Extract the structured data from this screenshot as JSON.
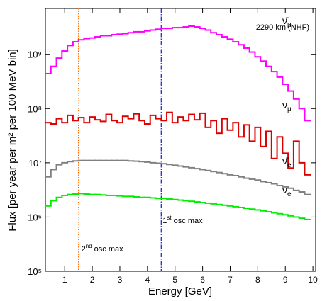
{
  "chart_data": {
    "type": "step",
    "xlabel": "Energy [GeV]",
    "ylabel": "Flux [per year per m² per 100 MeV bin]",
    "annotation": "2290 km (NHF)",
    "xlim": [
      0.3,
      10.1
    ],
    "xticks": [
      1,
      2,
      3,
      4,
      5,
      6,
      7,
      8,
      9,
      10
    ],
    "ylim": [
      100000,
      7000000000
    ],
    "log_y": true,
    "yticks": [
      {
        "value": 100000,
        "label": "10⁵"
      },
      {
        "value": 1000000,
        "label": "10⁶"
      },
      {
        "value": 10000000,
        "label": "10⁷"
      },
      {
        "value": 100000000,
        "label": "10⁸"
      },
      {
        "value": 1000000000,
        "label": "10⁹"
      }
    ],
    "grid": false,
    "vlines": [
      {
        "x": 1.5,
        "color": "#ff6a00",
        "style": "dotted",
        "text": "2",
        "sup": "nd",
        "tail": "osc max"
      },
      {
        "x": 4.5,
        "color": "#1a1acc",
        "style": "dashdot",
        "text": "1",
        "sup": "st",
        "tail": "osc max"
      }
    ],
    "x": [
      0.4,
      0.6,
      0.8,
      1.0,
      1.2,
      1.4,
      1.6,
      1.8,
      2.0,
      2.2,
      2.4,
      2.6,
      2.8,
      3.0,
      3.2,
      3.4,
      3.6,
      3.8,
      4.0,
      4.2,
      4.4,
      4.6,
      4.8,
      5.0,
      5.2,
      5.4,
      5.6,
      5.8,
      6.0,
      6.2,
      6.4,
      6.6,
      6.8,
      7.0,
      7.2,
      7.4,
      7.6,
      7.8,
      8.0,
      8.2,
      8.4,
      8.6,
      8.8,
      9.0,
      9.2,
      9.4,
      9.6,
      9.8
    ],
    "series": [
      {
        "name": "ν̄",
        "sub": "μ",
        "color": "#ff00ff",
        "values": [
          440000000.0,
          600000000.0,
          850000000.0,
          1150000000.0,
          1450000000.0,
          1700000000.0,
          1850000000.0,
          1950000000.0,
          2000000000.0,
          2100000000.0,
          2200000000.0,
          2200000000.0,
          2300000000.0,
          2350000000.0,
          2400000000.0,
          2500000000.0,
          2600000000.0,
          2600000000.0,
          2700000000.0,
          2800000000.0,
          2900000000.0,
          3000000000.0,
          3000000000.0,
          3100000000.0,
          3100000000.0,
          3200000000.0,
          3300000000.0,
          3200000000.0,
          3000000000.0,
          2800000000.0,
          2500000000.0,
          2300000000.0,
          2100000000.0,
          1900000000.0,
          1700000000.0,
          1500000000.0,
          1300000000.0,
          1100000000.0,
          900000000.0,
          750000000.0,
          600000000.0,
          480000000.0,
          380000000.0,
          280000000.0,
          210000000.0,
          150000000.0,
          100000000.0,
          60000000.0
        ]
      },
      {
        "name": "ν",
        "sub": "μ",
        "color": "#dd0000",
        "values": [
          55000000.0,
          52000000.0,
          65000000.0,
          55000000.0,
          75000000.0,
          60000000.0,
          68000000.0,
          55000000.0,
          70000000.0,
          62000000.0,
          58000000.0,
          78000000.0,
          60000000.0,
          55000000.0,
          72000000.0,
          65000000.0,
          80000000.0,
          60000000.0,
          52000000.0,
          75000000.0,
          65000000.0,
          60000000.0,
          85000000.0,
          55000000.0,
          70000000.0,
          60000000.0,
          78000000.0,
          62000000.0,
          82000000.0,
          45000000.0,
          60000000.0,
          35000000.0,
          65000000.0,
          40000000.0,
          55000000.0,
          30000000.0,
          50000000.0,
          25000000.0,
          45000000.0,
          20000000.0,
          38000000.0,
          12000000.0,
          30000000.0,
          15000000.0,
          8000000.0,
          25000000.0,
          10000000.0,
          6000000.0
        ]
      },
      {
        "name": "ν̄",
        "sub": "e",
        "color": "#808080",
        "values": [
          5500000.0,
          7500000.0,
          9200000.0,
          10000000.0,
          10500000.0,
          10800000.0,
          11000000.0,
          11000000.0,
          11000000.0,
          11000000.0,
          11000000.0,
          11000000.0,
          11000000.0,
          11000000.0,
          11000000.0,
          10800000.0,
          10700000.0,
          10500000.0,
          10300000.0,
          10000000.0,
          9800000.0,
          9600000.0,
          9300000.0,
          9000000.0,
          8700000.0,
          8400000.0,
          8100000.0,
          7800000.0,
          7500000.0,
          7200000.0,
          6900000.0,
          6600000.0,
          6300000.0,
          6000000.0,
          5800000.0,
          5500000.0,
          5200000.0,
          5000000.0,
          4800000.0,
          4500000.0,
          4300000.0,
          4100000.0,
          3800000.0,
          3600000.0,
          3400000.0,
          3100000.0,
          2900000.0,
          2600000.0
        ]
      },
      {
        "name": "ν",
        "sub": "e",
        "color": "#00ee00",
        "values": [
          1600000.0,
          2000000.0,
          2300000.0,
          2500000.0,
          2600000.0,
          2650000.0,
          2700000.0,
          2650000.0,
          2600000.0,
          2600000.0,
          2550000.0,
          2500000.0,
          2500000.0,
          2450000.0,
          2400000.0,
          2400000.0,
          2350000.0,
          2300000.0,
          2300000.0,
          2250000.0,
          2200000.0,
          2200000.0,
          2150000.0,
          2100000.0,
          2050000.0,
          2000000.0,
          1950000.0,
          1900000.0,
          1850000.0,
          1800000.0,
          1750000.0,
          1700000.0,
          1650000.0,
          1600000.0,
          1550000.0,
          1500000.0,
          1450000.0,
          1400000.0,
          1350000.0,
          1300000.0,
          1250000.0,
          1200000.0,
          1150000.0,
          1100000.0,
          1050000.0,
          1000000.0,
          950000.0,
          900000.0
        ]
      }
    ]
  }
}
